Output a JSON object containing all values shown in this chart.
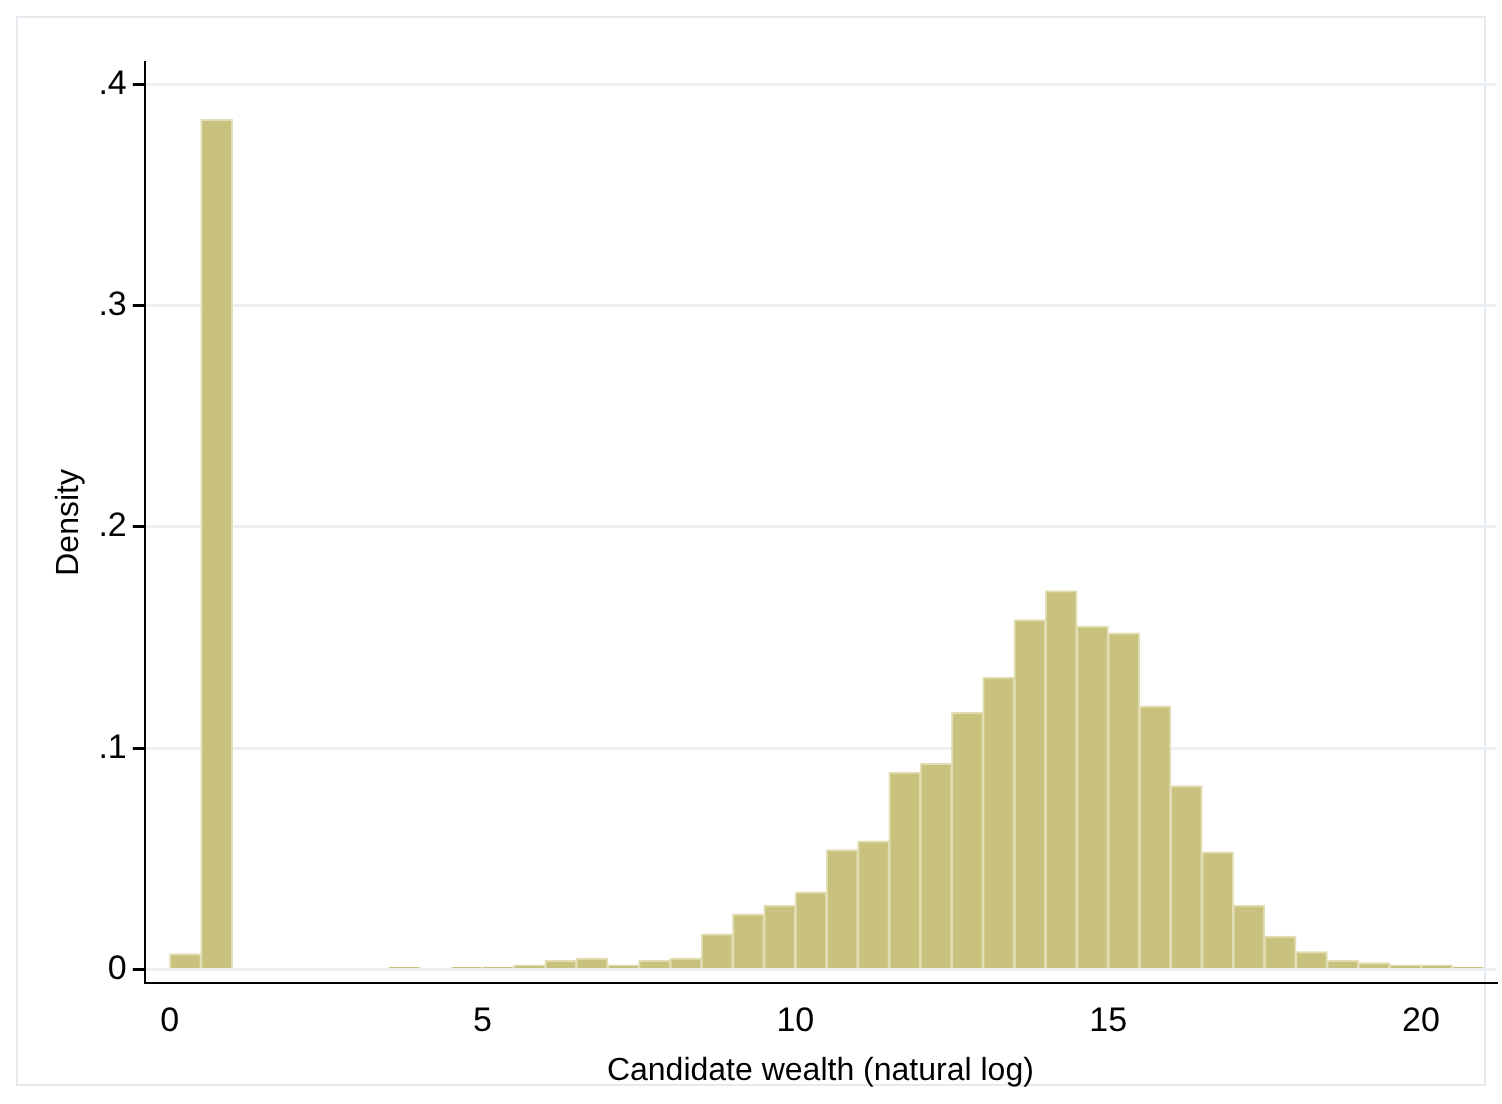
{
  "chart_data": {
    "type": "histogram",
    "xlabel": "Candidate wealth (natural log)",
    "ylabel": "Density",
    "color": "#c9c27e",
    "bins": [
      0,
      0.5,
      1,
      1.5,
      2,
      2.5,
      3,
      3.5,
      4,
      4.5,
      5,
      5.5,
      6,
      6.5,
      7,
      7.5,
      8,
      8.5,
      9,
      9.5,
      10,
      10.5,
      11,
      11.5,
      12,
      12.5,
      13,
      13.5,
      14,
      14.5,
      15,
      15.5,
      16,
      16.5,
      17,
      17.5,
      18,
      18.5,
      19,
      19.5,
      20,
      20.5,
      21
    ],
    "values": [
      0.007,
      0.384,
      0,
      0,
      0,
      0,
      0,
      0.001,
      0,
      0.001,
      0.001,
      0.002,
      0.004,
      0.005,
      0.002,
      0.004,
      0.005,
      0.016,
      0.025,
      0.029,
      0.035,
      0.054,
      0.058,
      0.089,
      0.093,
      0.116,
      0.132,
      0.158,
      0.171,
      0.155,
      0.152,
      0.119,
      0.083,
      0.053,
      0.029,
      0.015,
      0.008,
      0.004,
      0.003,
      0.002,
      0.002,
      0.001
    ],
    "xlim": [
      -0.4,
      21.2
    ],
    "xticks": [
      0,
      5,
      10,
      15,
      20
    ],
    "ylim": [
      -0.006,
      0.41
    ],
    "yticks": [
      {
        "value": 0,
        "label": "0"
      },
      {
        "value": 0.1,
        "label": ".1"
      },
      {
        "value": 0.2,
        "label": ".2"
      },
      {
        "value": 0.3,
        "label": ".3"
      },
      {
        "value": 0.4,
        "label": ".4"
      }
    ],
    "grid": "y"
  }
}
